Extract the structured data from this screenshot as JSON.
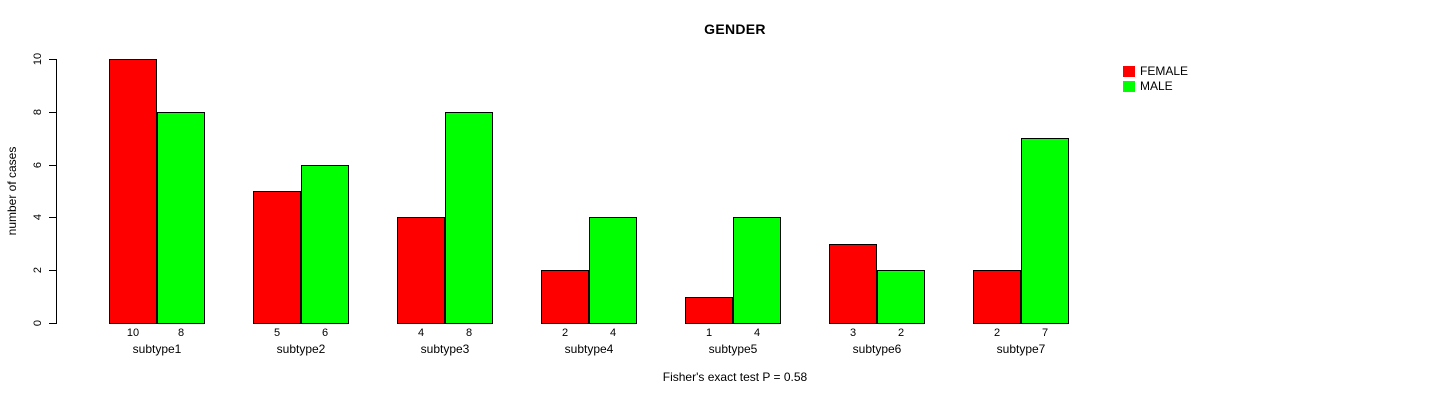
{
  "page": {
    "background": "#ffffff",
    "text_color": "#000000"
  },
  "chart_data": {
    "type": "bar",
    "title": "GENDER",
    "ylabel": "number of cases",
    "xlabel": "",
    "categories": [
      "subtype1",
      "subtype2",
      "subtype3",
      "subtype4",
      "subtype5",
      "subtype6",
      "subtype7"
    ],
    "series": [
      {
        "name": "FEMALE",
        "color": "#FF0000",
        "values": [
          10,
          5,
          4,
          2,
          1,
          3,
          2
        ]
      },
      {
        "name": "MALE",
        "color": "#00FF00",
        "values": [
          8,
          6,
          8,
          4,
          4,
          2,
          7
        ]
      }
    ],
    "value_labels": {
      "FEMALE": [
        10,
        5,
        4,
        2,
        1,
        3,
        2
      ],
      "MALE": [
        8,
        6,
        8,
        4,
        4,
        2,
        7
      ]
    },
    "yticks": [
      0,
      2,
      4,
      6,
      8,
      10
    ],
    "ylim": [
      0,
      10
    ],
    "grid": false,
    "legend_position": "top-right",
    "footer": "Fisher's exact test P = 0.58",
    "axis_color": "#000000",
    "bar_border_color": "#000000"
  }
}
